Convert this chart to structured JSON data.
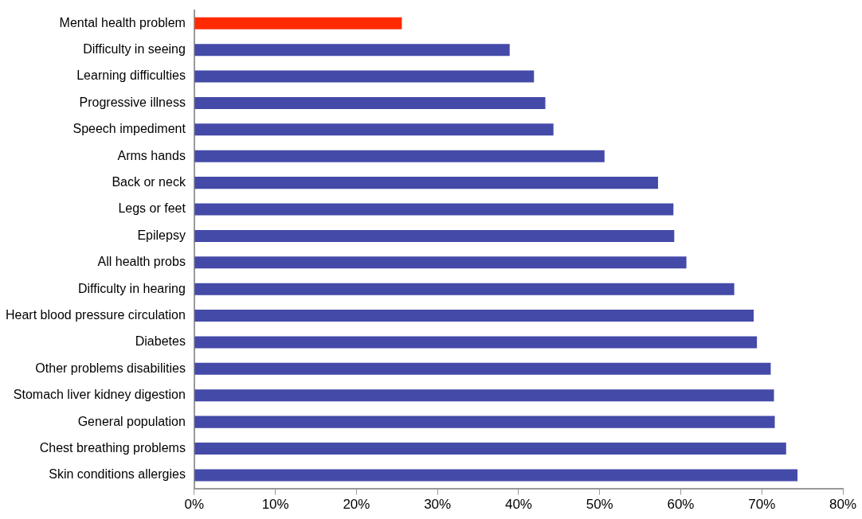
{
  "chart_data": {
    "type": "bar",
    "orientation": "horizontal",
    "categories": [
      "Mental health problem",
      "Difficulty in seeing",
      "Learning difficulties",
      "Progressive illness",
      "Speech impediment",
      "Arms hands",
      "Back or neck",
      "Legs or feet",
      "Epilepsy",
      "All health probs",
      "Difficulty in hearing",
      "Heart blood pressure circulation",
      "Diabetes",
      "Other problems disabilities",
      "Stomach liver kidney digestion",
      "General population",
      "Chest breathing problems",
      "Skin conditions allergies"
    ],
    "values": [
      25.6,
      38.9,
      41.9,
      43.3,
      44.3,
      50.6,
      57.2,
      59.1,
      59.2,
      60.7,
      66.6,
      69.0,
      69.4,
      71.1,
      71.5,
      71.6,
      73.0,
      74.4
    ],
    "colors": [
      "#ff2a00",
      "#444aa8",
      "#444aa8",
      "#444aa8",
      "#444aa8",
      "#444aa8",
      "#444aa8",
      "#444aa8",
      "#444aa8",
      "#444aa8",
      "#444aa8",
      "#444aa8",
      "#444aa8",
      "#444aa8",
      "#444aa8",
      "#444aa8",
      "#444aa8",
      "#444aa8"
    ],
    "xlim": [
      0,
      80
    ],
    "xticks": [
      {
        "value": 0,
        "label": "0%"
      },
      {
        "value": 10,
        "label": "10%"
      },
      {
        "value": 20,
        "label": "20%"
      },
      {
        "value": 30,
        "label": "30%"
      },
      {
        "value": 40,
        "label": "40%"
      },
      {
        "value": 50,
        "label": "50%"
      },
      {
        "value": 60,
        "label": "60%"
      },
      {
        "value": 70,
        "label": "70%"
      },
      {
        "value": 80,
        "label": "80%"
      }
    ],
    "grid": false,
    "legend": false
  }
}
